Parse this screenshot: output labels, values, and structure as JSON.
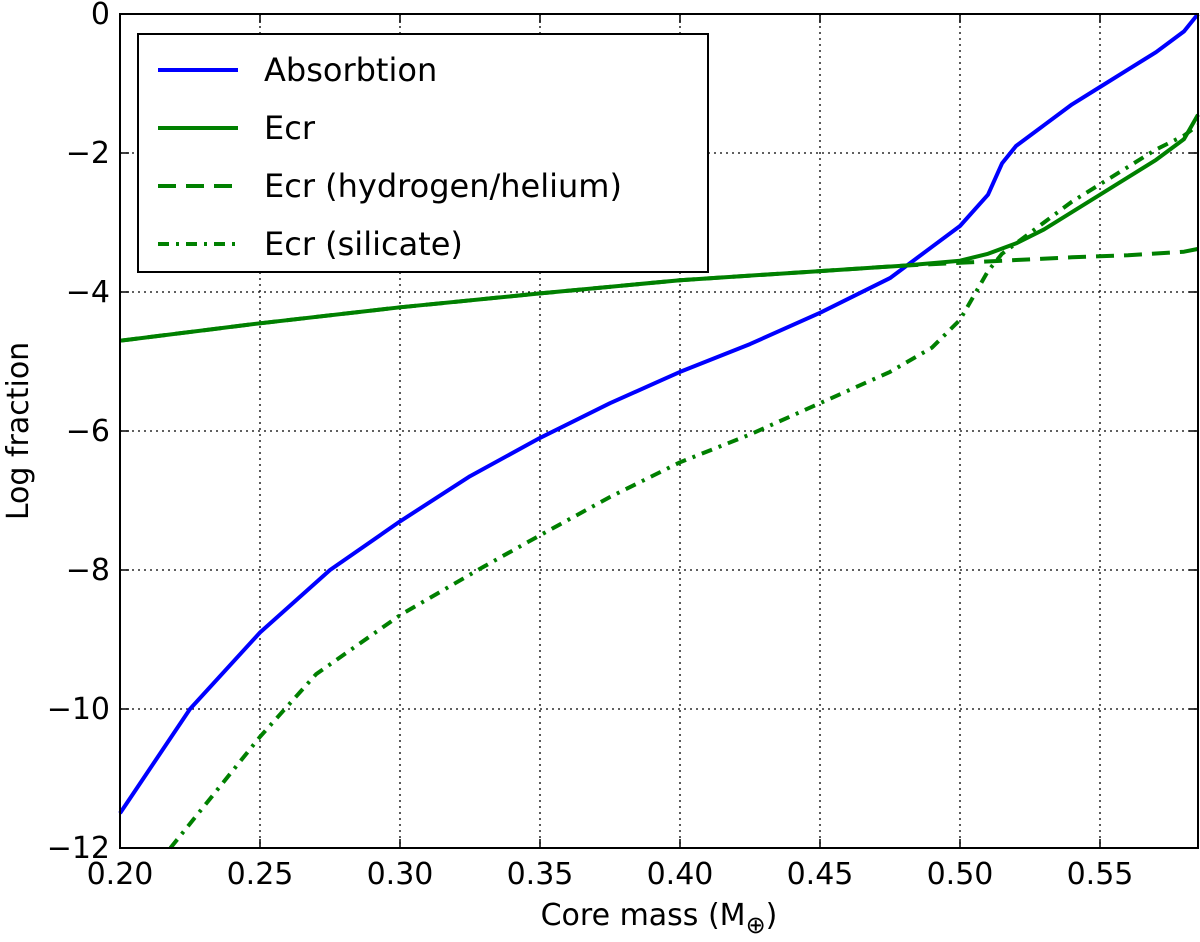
{
  "chart_data": {
    "type": "line",
    "xlabel": "Core mass (M",
    "xlabel_sub": "⊕",
    "xlabel_close": ")",
    "ylabel": "Log fraction",
    "xlim": [
      0.2,
      0.585
    ],
    "ylim": [
      -12,
      0
    ],
    "x_ticks": [
      0.2,
      0.25,
      0.3,
      0.35,
      0.4,
      0.45,
      0.5,
      0.55
    ],
    "x_tick_labels": [
      "0.20",
      "0.25",
      "0.30",
      "0.35",
      "0.40",
      "0.45",
      "0.50",
      "0.55"
    ],
    "y_ticks": [
      0,
      -2,
      -4,
      -6,
      -8,
      -10,
      -12
    ],
    "y_tick_labels": [
      "0",
      "−2",
      "−4",
      "−6",
      "−8",
      "−10",
      "−12"
    ],
    "grid": true,
    "legend_position": "top-left",
    "series": [
      {
        "name": "Absorbtion",
        "color": "#0000ff",
        "style": "solid",
        "x": [
          0.2,
          0.225,
          0.25,
          0.275,
          0.3,
          0.325,
          0.35,
          0.375,
          0.4,
          0.425,
          0.45,
          0.475,
          0.49,
          0.5,
          0.51,
          0.515,
          0.52,
          0.53,
          0.54,
          0.55,
          0.56,
          0.57,
          0.58,
          0.585
        ],
        "y": [
          -11.5,
          -10.0,
          -8.9,
          -8.0,
          -7.3,
          -6.65,
          -6.1,
          -5.6,
          -5.15,
          -4.75,
          -4.3,
          -3.8,
          -3.35,
          -3.05,
          -2.6,
          -2.15,
          -1.9,
          -1.6,
          -1.3,
          -1.05,
          -0.8,
          -0.55,
          -0.25,
          0.0
        ]
      },
      {
        "name": "Ecr",
        "color": "#008000",
        "style": "solid",
        "x": [
          0.2,
          0.25,
          0.3,
          0.35,
          0.4,
          0.45,
          0.48,
          0.5,
          0.51,
          0.52,
          0.53,
          0.54,
          0.55,
          0.56,
          0.57,
          0.58,
          0.585
        ],
        "y": [
          -4.7,
          -4.45,
          -4.22,
          -4.02,
          -3.83,
          -3.7,
          -3.62,
          -3.55,
          -3.45,
          -3.3,
          -3.1,
          -2.85,
          -2.6,
          -2.35,
          -2.1,
          -1.8,
          -1.45
        ]
      },
      {
        "name": "Ecr (hydrogen/helium)",
        "color": "#008000",
        "style": "dashed",
        "x": [
          0.2,
          0.25,
          0.3,
          0.35,
          0.4,
          0.45,
          0.48,
          0.5,
          0.52,
          0.54,
          0.56,
          0.58,
          0.585
        ],
        "y": [
          -4.7,
          -4.45,
          -4.22,
          -4.02,
          -3.83,
          -3.7,
          -3.62,
          -3.58,
          -3.54,
          -3.5,
          -3.47,
          -3.42,
          -3.38
        ]
      },
      {
        "name": "Ecr (silicate)",
        "color": "#008000",
        "style": "dashdot",
        "x": [
          0.218,
          0.23,
          0.25,
          0.27,
          0.3,
          0.33,
          0.35,
          0.375,
          0.4,
          0.425,
          0.45,
          0.475,
          0.49,
          0.5,
          0.51,
          0.515,
          0.52,
          0.53,
          0.54,
          0.55,
          0.56,
          0.57,
          0.58,
          0.585
        ],
        "y": [
          -12.0,
          -11.4,
          -10.4,
          -9.5,
          -8.65,
          -7.95,
          -7.5,
          -6.95,
          -6.45,
          -6.05,
          -5.6,
          -5.15,
          -4.8,
          -4.4,
          -3.7,
          -3.45,
          -3.3,
          -3.0,
          -2.7,
          -2.45,
          -2.2,
          -1.95,
          -1.75,
          -1.6
        ]
      }
    ]
  }
}
